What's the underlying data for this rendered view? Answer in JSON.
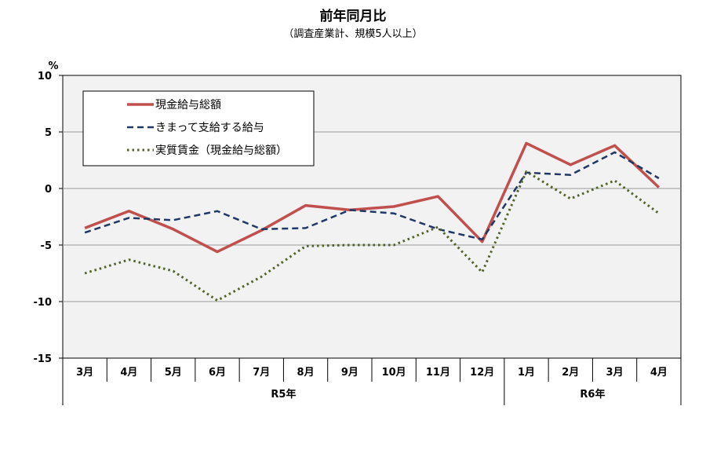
{
  "chart_data": {
    "type": "line",
    "title": "前年同月比",
    "subtitle": "（調査産業計、規模5人以上）",
    "ylabel": "%",
    "ylim": [
      -15,
      10
    ],
    "yticks": [
      10,
      5,
      0,
      -5,
      -10,
      -15
    ],
    "grid": true,
    "legend_position": "top-left",
    "categories": [
      "3月",
      "4月",
      "5月",
      "6月",
      "7月",
      "8月",
      "9月",
      "10月",
      "11月",
      "12月",
      "1月",
      "2月",
      "3月",
      "4月"
    ],
    "year_groups": [
      {
        "label": "R5年",
        "count": 10
      },
      {
        "label": "R6年",
        "count": 4
      }
    ],
    "series": [
      {
        "name": "現金給与総額",
        "color": "#c0504d",
        "style": "solid",
        "values": [
          -3.5,
          -2.0,
          -3.6,
          -5.6,
          -3.7,
          -1.5,
          -1.9,
          -1.6,
          -0.7,
          -4.7,
          4.0,
          2.1,
          3.8,
          0.1
        ]
      },
      {
        "name": "きまって支給する給与",
        "color": "#1f3864",
        "style": "dashed",
        "values": [
          -3.9,
          -2.6,
          -2.8,
          -2.0,
          -3.6,
          -3.5,
          -1.9,
          -2.2,
          -3.6,
          -4.5,
          1.4,
          1.2,
          3.2,
          0.9
        ]
      },
      {
        "name": "実質賃金（現金給与総額）",
        "color": "#4f6228",
        "style": "dotted",
        "values": [
          -7.5,
          -6.3,
          -7.3,
          -9.9,
          -7.8,
          -5.1,
          -5.0,
          -5.0,
          -3.4,
          -7.4,
          1.5,
          -0.9,
          0.7,
          -2.2
        ]
      }
    ]
  }
}
